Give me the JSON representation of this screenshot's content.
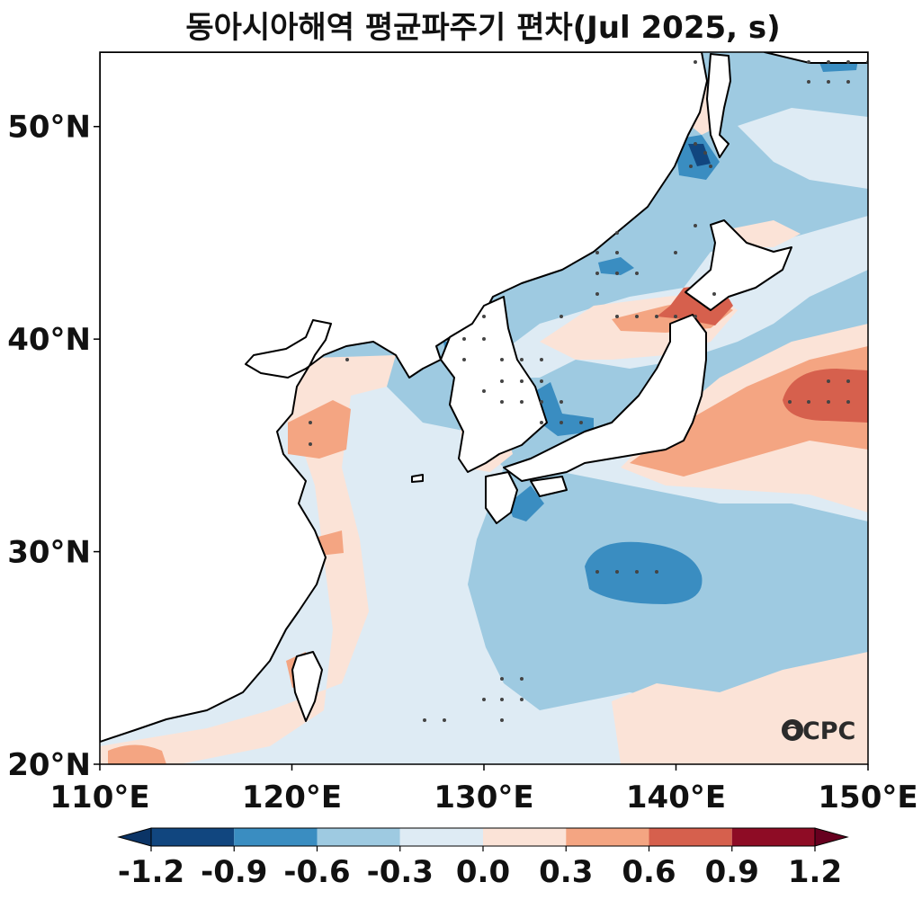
{
  "title": "동아시아해역 평균파주기 편차(Jul 2025, s)",
  "logo": "OCPC",
  "chart_data": {
    "type": "heatmap",
    "title": "동아시아해역 평균파주기 편차(Jul 2025, s)",
    "x_range_deg_e": [
      110,
      150
    ],
    "y_range_deg_n": [
      20,
      53.5
    ],
    "x_ticks": [
      "110°E",
      "120°E",
      "130°E",
      "140°E",
      "150°E"
    ],
    "y_ticks": [
      "20°N",
      "30°N",
      "40°N",
      "50°N"
    ],
    "colorbar": {
      "ticks": [
        "-1.2",
        "-0.9",
        "-0.6",
        "-0.3",
        "0.0",
        "0.3",
        "0.6",
        "0.9",
        "1.2"
      ],
      "levels": [
        -1.2,
        -0.9,
        -0.6,
        -0.3,
        0.0,
        0.3,
        0.6,
        0.9,
        1.2
      ],
      "colors": [
        "#11467f",
        "#3a8dc1",
        "#9ecae1",
        "#deebf4",
        "#fbe3d7",
        "#f4a582",
        "#d6604d",
        "#8e0c25"
      ],
      "under_color": "#0b3466",
      "over_color": "#67001f"
    },
    "land_color": "#ffffff",
    "features": [
      {
        "name": "strong positive anomaly east of Japan",
        "lon": 148,
        "lat": 37.5,
        "value": 0.9
      },
      {
        "name": "positive anomaly Tsugaru Strait",
        "lon": 141.5,
        "lat": 41.5,
        "value": 0.9
      },
      {
        "name": "negative anomaly south of Japan",
        "lon": 138,
        "lat": 29,
        "value": -0.8
      },
      {
        "name": "negative anomaly Sea of Japan",
        "lon": 133,
        "lat": 37,
        "value": -0.7
      },
      {
        "name": "negative anomaly Strait of Tartary",
        "lon": 140,
        "lat": 48.5,
        "value": -0.9
      },
      {
        "name": "positive anomaly Yellow Sea coast",
        "lon": 121,
        "lat": 35.5,
        "value": 0.5
      }
    ]
  }
}
